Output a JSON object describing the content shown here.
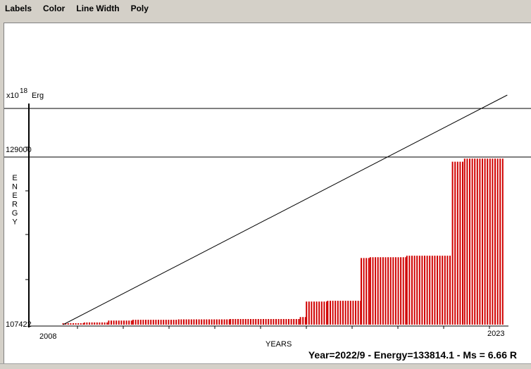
{
  "menu": {
    "items": [
      "Labels",
      "Color",
      "Line Width",
      "Poly"
    ]
  },
  "status": {
    "text": "Year=2022/9 - Energy=133814.1 - Ms = 6.66 R"
  },
  "colors": {
    "bar": "#d00000",
    "line": "#000000",
    "background": "#ffffff"
  },
  "chart_data": {
    "type": "bar",
    "title": "",
    "xlabel": "YEARS",
    "ylabel": "ENERGY",
    "y_multiplier_base": "x10",
    "y_multiplier_exp": "18",
    "y_unit": "Erg",
    "x_range": [
      2008,
      2023
    ],
    "xlim_labels": [
      "2008",
      "2023"
    ],
    "ylim": [
      107422,
      134000
    ],
    "y_tick_labels": [
      "107422",
      "129000"
    ],
    "grid": false,
    "reference_lines": [
      {
        "kind": "horizontal",
        "y": 129000
      },
      {
        "kind": "horizontal",
        "y": 134000
      },
      {
        "kind": "trend",
        "from": [
          2008.5,
          107422
        ],
        "to": [
          2023.1,
          134700
        ]
      }
    ],
    "cumulative_steps": [
      {
        "from": 2008.5,
        "to": 2009.2,
        "value": 107600
      },
      {
        "from": 2009.2,
        "to": 2010.0,
        "value": 107700
      },
      {
        "from": 2010.0,
        "to": 2010.8,
        "value": 107950
      },
      {
        "from": 2010.8,
        "to": 2012.3,
        "value": 108050
      },
      {
        "from": 2012.3,
        "to": 2014.0,
        "value": 108100
      },
      {
        "from": 2014.0,
        "to": 2016.3,
        "value": 108150
      },
      {
        "from": 2016.3,
        "to": 2016.5,
        "value": 108400
      },
      {
        "from": 2016.5,
        "to": 2017.2,
        "value": 110400
      },
      {
        "from": 2017.2,
        "to": 2018.3,
        "value": 110500
      },
      {
        "from": 2018.3,
        "to": 2018.6,
        "value": 116000
      },
      {
        "from": 2018.6,
        "to": 2019.8,
        "value": 116100
      },
      {
        "from": 2019.8,
        "to": 2021.3,
        "value": 116300
      },
      {
        "from": 2021.3,
        "to": 2021.7,
        "value": 128400
      },
      {
        "from": 2021.7,
        "to": 2023.0,
        "value": 128800
      }
    ],
    "bars_per_year": 12
  }
}
